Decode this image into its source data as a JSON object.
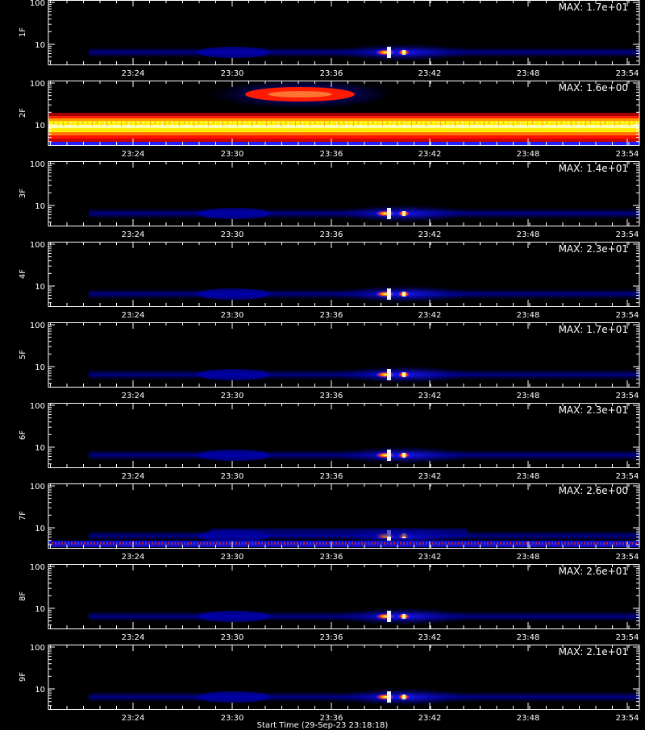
{
  "chart_data": [
    {
      "type": "heatmap",
      "panel": "1F",
      "ylabel": "1F",
      "max_label": "MAX: 1.7e+01",
      "yticks": [
        "100",
        "10"
      ],
      "xticks": [
        "23:24",
        "23:30",
        "23:36",
        "23:42",
        "23:48",
        "23:54"
      ],
      "features": [
        "weak blue band near 5-6",
        "bright burst near 23:39-23:41"
      ]
    },
    {
      "type": "heatmap",
      "panel": "2F",
      "ylabel": "2F",
      "max_label": "MAX: 1.6e+00",
      "yticks": [
        "100",
        "10"
      ],
      "xticks": [
        "23:24",
        "23:30",
        "23:36",
        "23:42",
        "23:48",
        "23:54"
      ],
      "features": [
        "strong continuous band 4-20",
        "red patch near 50 between 23:31 and 23:38"
      ]
    },
    {
      "type": "heatmap",
      "panel": "3F",
      "ylabel": "3F",
      "max_label": "MAX: 1.4e+01",
      "yticks": [
        "100",
        "10"
      ],
      "xticks": [
        "23:24",
        "23:30",
        "23:36",
        "23:42",
        "23:48",
        "23:54"
      ],
      "features": [
        "weak blue band near 5-6",
        "bright burst near 23:39-23:41"
      ]
    },
    {
      "type": "heatmap",
      "panel": "4F",
      "ylabel": "4F",
      "max_label": "MAX: 2.3e+01",
      "yticks": [
        "100",
        "10"
      ],
      "xticks": [
        "23:24",
        "23:30",
        "23:36",
        "23:42",
        "23:48",
        "23:54"
      ],
      "features": [
        "weak blue band near 5-6",
        "bright burst near 23:39-23:41"
      ]
    },
    {
      "type": "heatmap",
      "panel": "5F",
      "ylabel": "5F",
      "max_label": "MAX: 1.7e+01",
      "yticks": [
        "100",
        "10"
      ],
      "xticks": [
        "23:24",
        "23:30",
        "23:36",
        "23:42",
        "23:48",
        "23:54"
      ],
      "features": [
        "weak blue band near 5-6",
        "bright burst near 23:39-23:41"
      ]
    },
    {
      "type": "heatmap",
      "panel": "6F",
      "ylabel": "6F",
      "max_label": "MAX: 2.3e+01",
      "yticks": [
        "100",
        "10"
      ],
      "xticks": [
        "23:24",
        "23:30",
        "23:36",
        "23:42",
        "23:48",
        "23:54"
      ],
      "features": [
        "weak blue band near 5-6",
        "bright burst near 23:39-23:41"
      ]
    },
    {
      "type": "heatmap",
      "panel": "7F",
      "ylabel": "7F",
      "max_label": "MAX: 2.6e+00",
      "yticks": [
        "100",
        "10"
      ],
      "xticks": [
        "23:24",
        "23:30",
        "23:36",
        "23:42",
        "23:48",
        "23:54"
      ],
      "features": [
        "blue band near 5-10",
        "bright burst near 23:39-23:41",
        "noisy low band"
      ]
    },
    {
      "type": "heatmap",
      "panel": "8F",
      "ylabel": "8F",
      "max_label": "MAX: 2.6e+01",
      "yticks": [
        "100",
        "10"
      ],
      "xticks": [
        "23:24",
        "23:30",
        "23:36",
        "23:42",
        "23:48",
        "23:54"
      ],
      "features": [
        "weak blue band near 5-6",
        "bright burst near 23:39-23:41"
      ]
    },
    {
      "type": "heatmap",
      "panel": "9F",
      "ylabel": "9F",
      "max_label": "MAX: 2.1e+01",
      "yticks": [
        "100",
        "10"
      ],
      "xticks": [
        "23:24",
        "23:30",
        "23:36",
        "23:42",
        "23:48",
        "23:54"
      ],
      "features": [
        "weak blue band near 5-6",
        "bright burst near 23:39-23:41"
      ]
    }
  ],
  "footer": "Start Time (29-Sep-23 23:18:18)",
  "colors": {
    "background": "#000000",
    "axis": "#ffffff",
    "colormap": [
      "#000000",
      "#00008b",
      "#0000ff",
      "#b40000",
      "#ff0000",
      "#ff7700",
      "#ffff00",
      "#ffffff"
    ]
  }
}
